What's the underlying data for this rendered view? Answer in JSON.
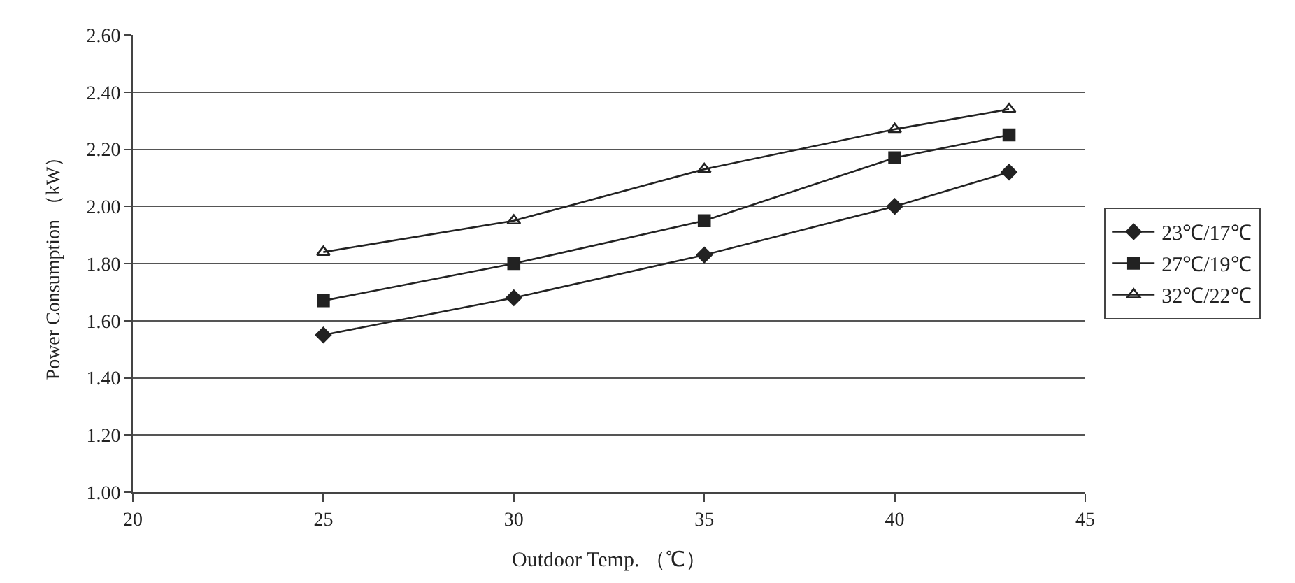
{
  "chart_data": {
    "type": "line",
    "xlabel": "Outdoor Temp. （℃）",
    "ylabel": "Power Consumption （kW）",
    "x": [
      25,
      30,
      35,
      40,
      43
    ],
    "series": [
      {
        "name": "23℃/17℃",
        "color": "#222222",
        "marker": "diamond",
        "values": [
          1.55,
          1.68,
          1.83,
          2.0,
          2.12
        ]
      },
      {
        "name": "27℃/19℃",
        "color": "#222222",
        "marker": "square",
        "values": [
          1.67,
          1.8,
          1.95,
          2.17,
          2.25
        ]
      },
      {
        "name": "32℃/22℃",
        "color": "#222222",
        "marker": "triangle",
        "values": [
          1.84,
          1.95,
          2.13,
          2.27,
          2.34
        ]
      }
    ],
    "xlim": [
      20,
      45
    ],
    "xticks": [
      20,
      25,
      30,
      35,
      40,
      45
    ],
    "ylim": [
      1.0,
      2.6
    ],
    "yticks": [
      {
        "value": 1.0,
        "label": "1.00"
      },
      {
        "value": 1.2,
        "label": "1.20"
      },
      {
        "value": 1.4,
        "label": "1.40"
      },
      {
        "value": 1.6,
        "label": "1.60"
      },
      {
        "value": 1.8,
        "label": "1.80"
      },
      {
        "value": 2.0,
        "label": "2.00"
      },
      {
        "value": 2.2,
        "label": "2.20"
      },
      {
        "value": 2.4,
        "label": "2.40"
      },
      {
        "value": 2.6,
        "label": "2.60"
      }
    ],
    "grid": "y",
    "legend": "right",
    "line_style": "solid"
  }
}
